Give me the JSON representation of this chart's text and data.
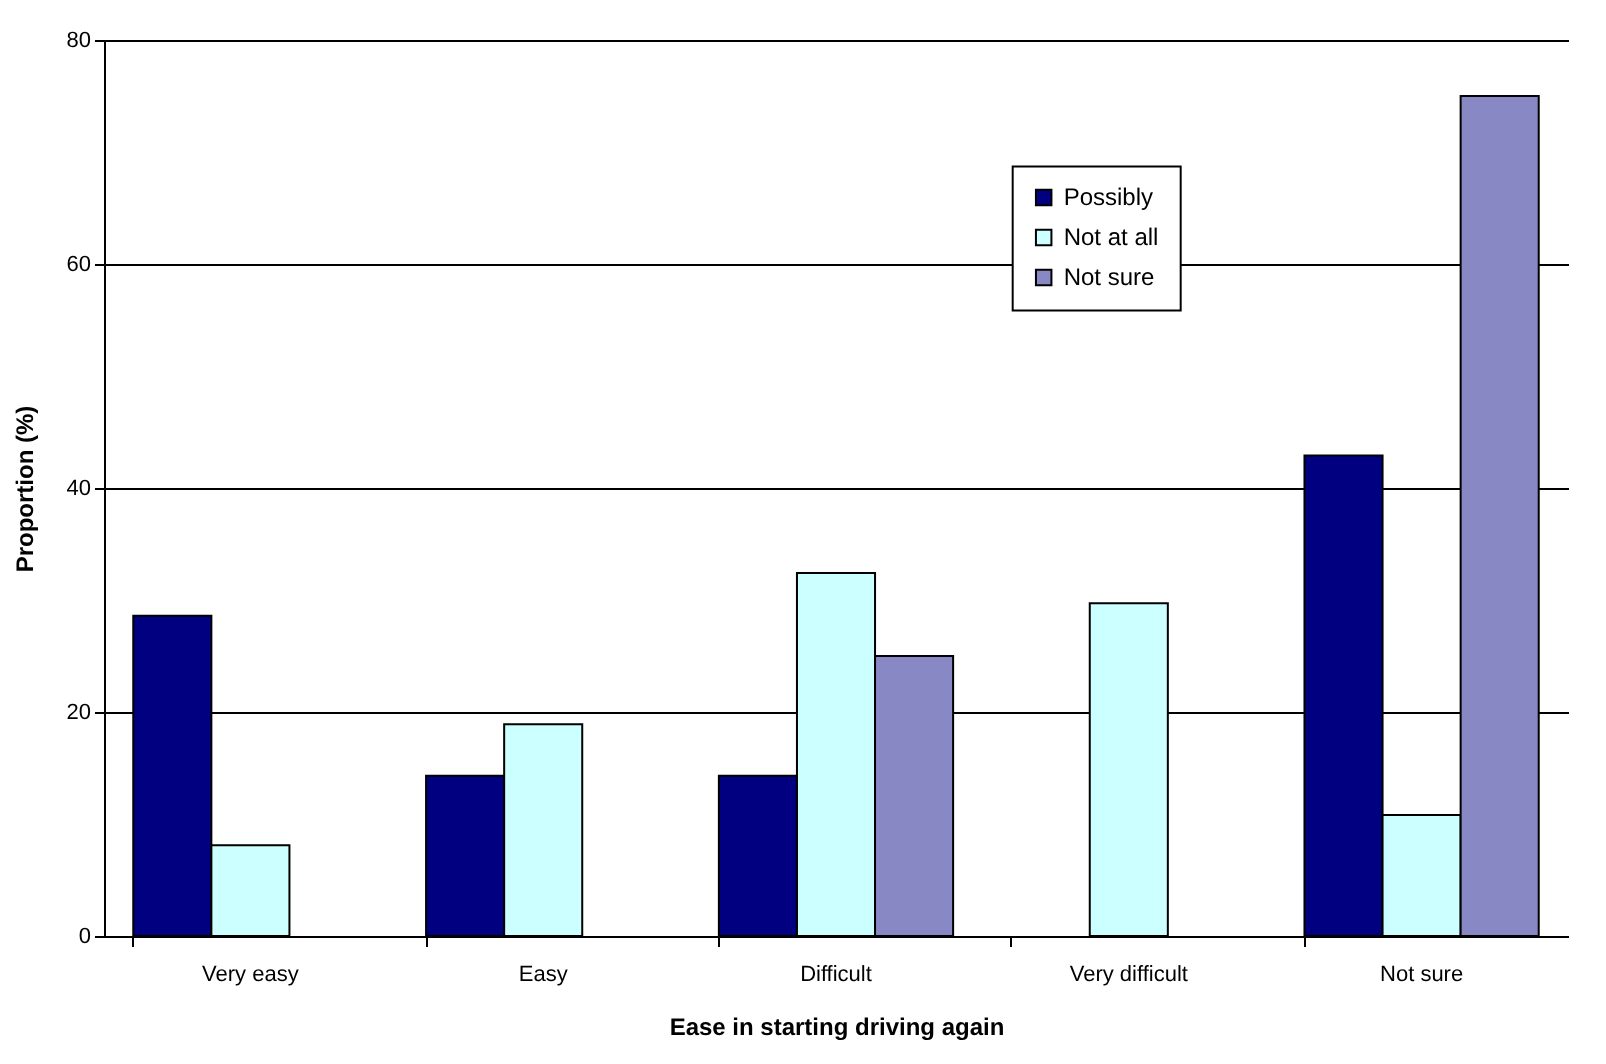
{
  "chart_data": {
    "type": "bar",
    "xlabel": "Ease in starting driving again",
    "ylabel": "Proportion (%)",
    "categories": [
      "Very easy",
      "Easy",
      "Difficult",
      "Very difficult",
      "Not sure"
    ],
    "series": [
      {
        "name": "Possibly",
        "color": "#000080",
        "values": [
          28.6,
          14.3,
          14.3,
          null,
          42.9
        ]
      },
      {
        "name": "Not at all",
        "color": "#ccffff",
        "values": [
          8.1,
          18.9,
          32.4,
          29.7,
          10.8
        ]
      },
      {
        "name": "Not sure",
        "color": "#8888c4",
        "values": [
          null,
          null,
          25,
          null,
          75
        ]
      }
    ],
    "ylim": [
      0,
      80
    ],
    "yticks": [
      0,
      20,
      40,
      60,
      80
    ],
    "grid": "y",
    "legend": "top right"
  }
}
